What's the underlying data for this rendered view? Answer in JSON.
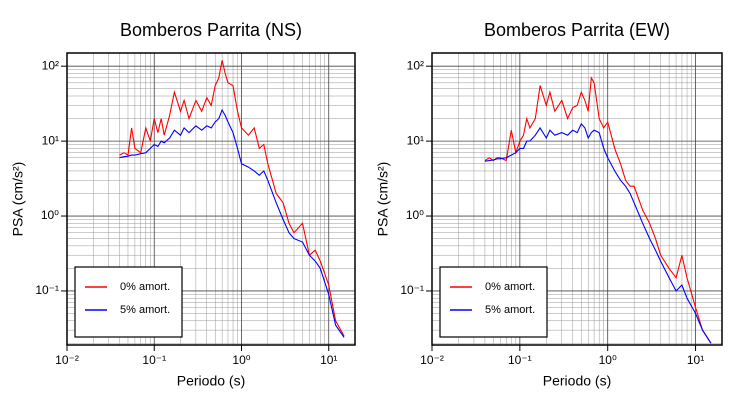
{
  "chart_data": [
    {
      "type": "line",
      "title": "Bomberos Parrita (NS)",
      "xlabel": "Periodo (s)",
      "ylabel": "PSA (cm/s²)",
      "log_x": true,
      "log_y": true,
      "grid": true,
      "legend": "lower left",
      "xlim": [
        0.01,
        20
      ],
      "ylim": [
        0.019,
        150
      ],
      "xticks": [
        {
          "value": 0.01,
          "label": "10⁻²"
        },
        {
          "value": 0.1,
          "label": "10⁻¹"
        },
        {
          "value": 1,
          "label": "10⁰"
        },
        {
          "value": 10,
          "label": "10¹"
        }
      ],
      "yticks": [
        {
          "value": 0.1,
          "label": "10⁻¹"
        },
        {
          "value": 1,
          "label": "10⁰"
        },
        {
          "value": 10,
          "label": "10¹"
        },
        {
          "value": 100,
          "label": "10²"
        }
      ],
      "x": [
        0.04,
        0.045,
        0.05,
        0.055,
        0.06,
        0.07,
        0.08,
        0.09,
        0.1,
        0.11,
        0.12,
        0.13,
        0.15,
        0.17,
        0.2,
        0.22,
        0.25,
        0.3,
        0.35,
        0.4,
        0.45,
        0.5,
        0.55,
        0.6,
        0.65,
        0.7,
        0.8,
        0.9,
        1.0,
        1.2,
        1.4,
        1.6,
        1.8,
        2.0,
        2.5,
        3,
        3.5,
        4,
        5,
        6,
        7,
        8,
        10,
        12,
        15
      ],
      "series": [
        {
          "name": "0% amort.",
          "color": "#ff0000",
          "values": [
            6.5,
            7,
            6.5,
            15,
            8,
            7,
            15,
            10,
            20,
            13,
            20,
            12,
            22,
            45,
            25,
            35,
            20,
            35,
            25,
            38,
            30,
            55,
            70,
            120,
            80,
            60,
            55,
            25,
            15,
            12,
            15,
            8,
            9,
            5,
            2,
            1.5,
            0.8,
            0.6,
            0.8,
            0.3,
            0.35,
            0.25,
            0.12,
            0.04,
            0.025
          ]
        },
        {
          "name": "5% amort.",
          "color": "#0000ff",
          "values": [
            6,
            6.2,
            6.3,
            6.5,
            6.5,
            6.8,
            7,
            8,
            9,
            8.5,
            10,
            9.5,
            11,
            14,
            12,
            15,
            13,
            16,
            14,
            16,
            15,
            18,
            20,
            26,
            22,
            18,
            13,
            8,
            5,
            4.5,
            4,
            3.5,
            4,
            3,
            1.5,
            0.9,
            0.6,
            0.5,
            0.45,
            0.3,
            0.25,
            0.2,
            0.09,
            0.035,
            0.024
          ]
        }
      ]
    },
    {
      "type": "line",
      "title": "Bomberos Parrita (EW)",
      "xlabel": "Periodo (s)",
      "ylabel": "PSA (cm/s²)",
      "log_x": true,
      "log_y": true,
      "grid": true,
      "legend": "lower left",
      "xlim": [
        0.01,
        20
      ],
      "ylim": [
        0.019,
        150
      ],
      "xticks": [
        {
          "value": 0.01,
          "label": "10⁻²"
        },
        {
          "value": 0.1,
          "label": "10⁻¹"
        },
        {
          "value": 1,
          "label": "10⁰"
        },
        {
          "value": 10,
          "label": "10¹"
        }
      ],
      "yticks": [
        {
          "value": 0.1,
          "label": "10⁻¹"
        },
        {
          "value": 1,
          "label": "10⁰"
        },
        {
          "value": 10,
          "label": "10¹"
        },
        {
          "value": 100,
          "label": "10²"
        }
      ],
      "x": [
        0.04,
        0.045,
        0.05,
        0.055,
        0.06,
        0.07,
        0.08,
        0.09,
        0.1,
        0.11,
        0.12,
        0.13,
        0.15,
        0.17,
        0.2,
        0.22,
        0.25,
        0.3,
        0.35,
        0.4,
        0.45,
        0.5,
        0.55,
        0.6,
        0.65,
        0.7,
        0.8,
        0.9,
        1.0,
        1.2,
        1.4,
        1.6,
        1.8,
        2.0,
        2.5,
        3,
        3.5,
        4,
        5,
        6,
        7,
        8,
        10,
        12,
        15
      ],
      "series": [
        {
          "name": "0% amort.",
          "color": "#ff0000",
          "values": [
            5.5,
            6,
            5.5,
            6,
            6,
            5.5,
            14,
            7,
            10,
            12,
            20,
            15,
            20,
            55,
            30,
            45,
            25,
            35,
            20,
            28,
            30,
            45,
            35,
            25,
            70,
            60,
            20,
            15,
            18,
            8,
            5,
            3,
            2.5,
            2.5,
            1.2,
            0.8,
            0.5,
            0.3,
            0.2,
            0.15,
            0.3,
            0.15,
            0.06,
            0.03,
            0.02
          ]
        },
        {
          "name": "5% amort.",
          "color": "#0000ff",
          "values": [
            5.4,
            5.5,
            5.6,
            5.8,
            5.8,
            6,
            6.5,
            7,
            8,
            8,
            10,
            10,
            12,
            15,
            11,
            14,
            12,
            13,
            12,
            14,
            13,
            17,
            15,
            11,
            13,
            14,
            13,
            8,
            6,
            4,
            3,
            2.5,
            2,
            1.5,
            0.8,
            0.5,
            0.35,
            0.25,
            0.15,
            0.1,
            0.12,
            0.08,
            0.05,
            0.03,
            0.02
          ]
        }
      ]
    }
  ]
}
